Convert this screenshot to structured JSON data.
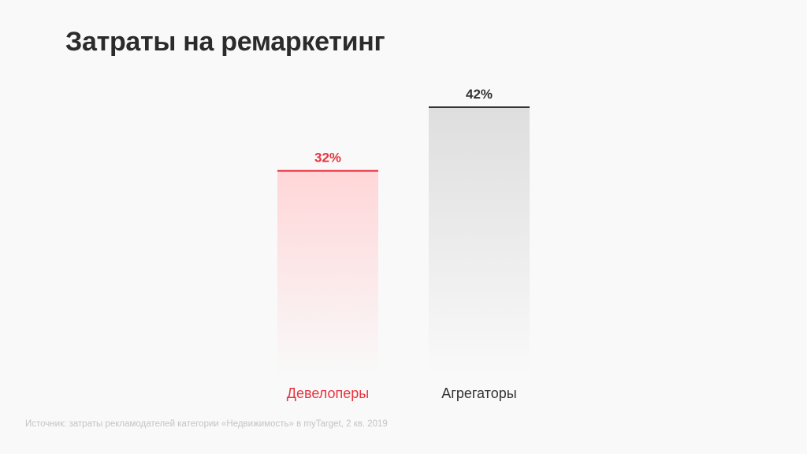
{
  "chart_data": {
    "type": "bar",
    "title": "Затраты на ремаркетинг",
    "categories": [
      "Девелоперы",
      "Агрегаторы"
    ],
    "values": [
      32,
      42
    ],
    "value_labels": [
      "32%",
      "42%"
    ],
    "ylim": [
      0,
      42
    ],
    "unit": "%",
    "grid": false,
    "colors": {
      "bars": [
        "#e8343f",
        "#333333"
      ],
      "fills": [
        "#ffd6d8",
        "#dedede"
      ],
      "labels": [
        "#e8343f",
        "#333333"
      ],
      "category_labels": [
        "#e8343f",
        "#333333"
      ]
    }
  },
  "source": "Источник: затраты рекламодателей категории «Недвижимость» в myTarget, 2 кв. 2019"
}
